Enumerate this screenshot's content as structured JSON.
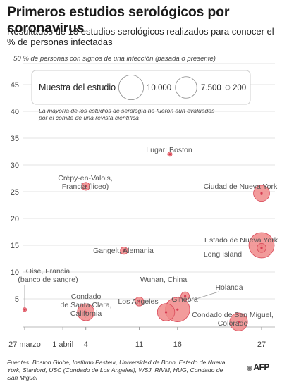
{
  "header": {
    "title": "Primeros estudios serológicos por coronavirus",
    "subtitle": "Resultados de 13 estudios serológicos realizados para conocer el % de personas infectadas"
  },
  "colors": {
    "bubble_fill": "#f08a8a",
    "bubble_stroke": "#d94a5a",
    "bubble_center": "#d63c52",
    "grid": "#e3e3e3",
    "text": "#444444"
  },
  "chart_data": {
    "type": "scatter",
    "ylabel_top": "50 % de personas con signos de una infección (pasada o presente)",
    "ylim": [
      0,
      50
    ],
    "yticks": [
      5,
      10,
      15,
      20,
      25,
      30,
      35,
      40,
      45
    ],
    "xticks": [
      {
        "label": "27 marzo",
        "day": 0
      },
      {
        "label": "1 abril",
        "day": 5
      },
      {
        "label": "4",
        "day": 8
      },
      {
        "label": "11",
        "day": 15
      },
      {
        "label": "16",
        "day": 20
      },
      {
        "label": "27",
        "day": 31
      }
    ],
    "xlim": [
      -2,
      32
    ],
    "legend": {
      "title": "Muestra del estudio",
      "items": [
        {
          "label": "10.000",
          "size": 10000
        },
        {
          "label": "7.500",
          "size": 7500
        },
        {
          "label": "200",
          "size": 200
        }
      ]
    },
    "note": "La mayoría de los estudios de serología no fueron aún evaluados por el comité de una revista científica",
    "points": [
      {
        "label": "Oise, Francia (banco de sangre)",
        "day": 0,
        "value": 3,
        "size": 150
      },
      {
        "label": "Condado de Santa Clara, California",
        "day": 8,
        "value": 2.5,
        "size": 3300
      },
      {
        "label": "Crépy-en-Valois, Francia (liceo)",
        "day": 8,
        "value": 26,
        "size": 700
      },
      {
        "label": "Gangelt, Alemania",
        "day": 13,
        "value": 14,
        "size": 600
      },
      {
        "label": "Los Angeles",
        "day": 15,
        "value": 4.5,
        "size": 900
      },
      {
        "label": "Wuhan, China",
        "day": 18.5,
        "value": 2.5,
        "size": 3500
      },
      {
        "label": "Holanda",
        "day": 20,
        "value": 3,
        "size": 7000
      },
      {
        "label": "Ginebra",
        "day": 21,
        "value": 5.5,
        "size": 800
      },
      {
        "label": "Lugar: Boston",
        "day": 19,
        "value": 32,
        "size": 200
      },
      {
        "label": "Ciudad de Nueva York",
        "day": 31,
        "value": 24.7,
        "size": 3000
      },
      {
        "label": "Estado de Nueva York",
        "day": 31,
        "value": 15,
        "size": 7500
      },
      {
        "label": "Long Island",
        "day": 31,
        "value": 14.5,
        "size": 900
      },
      {
        "label": "Condado de San Miguel, Colorado",
        "day": 28,
        "value": 0.7,
        "size": 3700
      }
    ]
  },
  "footer": {
    "source": "Fuentes: Boston Globe, Instituto Pasteur, Universidad de Bonn, Estado de Nueva York, Stanford, USC (Condado de Los Angeles), WSJ, RIVM, HUG, Condado de San Miguel",
    "logo": "AFP"
  }
}
